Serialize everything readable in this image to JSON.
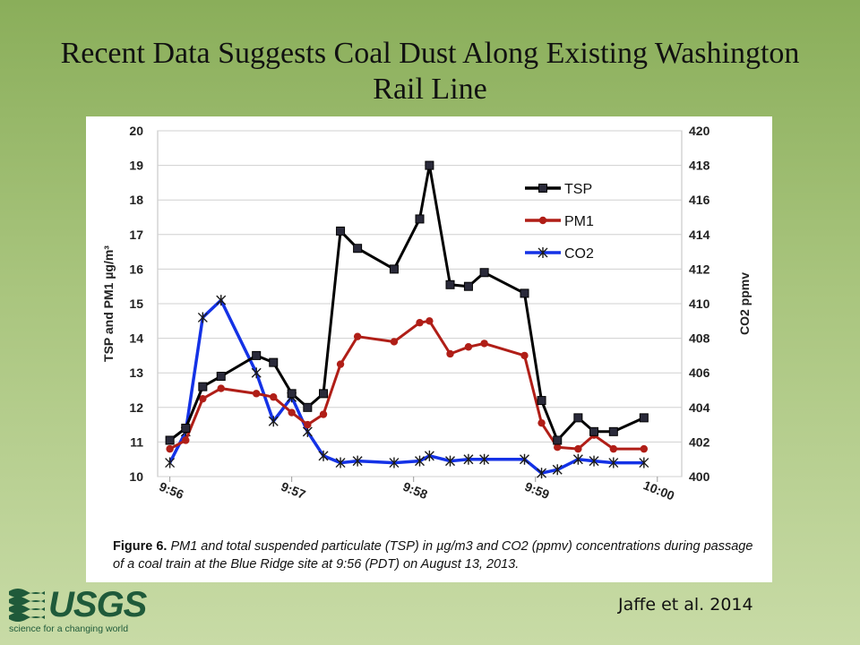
{
  "slide": {
    "title": "Recent Data Suggests Coal Dust Along Existing Washington Rail Line",
    "citation": "Jaffe et al. 2014",
    "logo_text": "USGS",
    "logo_tagline": "science for a changing world"
  },
  "caption": {
    "label": "Figure 6.",
    "text": "PM1 and total suspended particulate (TSP) in µg/m3 and CO2 (ppmv) concentrations during passage of a coal train at the Blue Ridge site at 9:56 (PDT) on August 13, 2013."
  },
  "colors": {
    "tsp": "#000000",
    "pm1": "#b01e17",
    "co2": "#1432e6"
  },
  "chart_data": {
    "type": "line",
    "ylabel": "TSP and PM1 µg/m³",
    "y2label": "CO2 ppmv",
    "ylim": [
      10,
      20
    ],
    "y2lim": [
      400,
      420
    ],
    "yticks": [
      10,
      11,
      12,
      13,
      14,
      15,
      16,
      17,
      18,
      19,
      20
    ],
    "y2ticks": [
      400,
      402,
      404,
      406,
      408,
      410,
      412,
      414,
      416,
      418,
      420
    ],
    "xlim": [
      -0.1,
      4.2
    ],
    "xticks": [
      {
        "value": 0,
        "label": "9:56"
      },
      {
        "value": 1,
        "label": "9:57"
      },
      {
        "value": 2,
        "label": "9:58"
      },
      {
        "value": 3,
        "label": "9:59"
      },
      {
        "value": 4,
        "label": "10:00"
      }
    ],
    "grid": true,
    "legend_position": "top-right",
    "series": [
      {
        "name": "TSP",
        "axis": "left",
        "marker": "square",
        "x": [
          0.0,
          0.13,
          0.27,
          0.42,
          0.71,
          0.85,
          1.0,
          1.13,
          1.26,
          1.4,
          1.54,
          1.84,
          2.05,
          2.13,
          2.3,
          2.45,
          2.58,
          2.91,
          3.05,
          3.18,
          3.35,
          3.48,
          3.64,
          3.89
        ],
        "y": [
          11.05,
          11.4,
          12.6,
          12.9,
          13.5,
          13.3,
          12.4,
          12.0,
          12.4,
          17.1,
          16.6,
          16.0,
          17.45,
          19.0,
          15.55,
          15.5,
          15.9,
          15.3,
          12.2,
          11.05,
          11.7,
          11.3,
          11.3,
          11.7
        ]
      },
      {
        "name": "PM1",
        "axis": "left",
        "marker": "circle",
        "x": [
          0.0,
          0.13,
          0.27,
          0.42,
          0.71,
          0.85,
          1.0,
          1.13,
          1.26,
          1.4,
          1.54,
          1.84,
          2.05,
          2.13,
          2.3,
          2.45,
          2.58,
          2.91,
          3.05,
          3.18,
          3.35,
          3.48,
          3.64,
          3.89
        ],
        "y": [
          10.8,
          11.05,
          12.25,
          12.55,
          12.4,
          12.3,
          11.85,
          11.5,
          11.8,
          13.25,
          14.05,
          13.9,
          14.45,
          14.5,
          13.55,
          13.75,
          13.85,
          13.5,
          11.55,
          10.85,
          10.8,
          11.2,
          10.8,
          10.8
        ]
      },
      {
        "name": "CO2",
        "axis": "right",
        "marker": "star",
        "x": [
          0.0,
          0.13,
          0.27,
          0.42,
          0.71,
          0.85,
          1.0,
          1.13,
          1.26,
          1.4,
          1.54,
          1.84,
          2.05,
          2.13,
          2.3,
          2.45,
          2.58,
          2.91,
          3.05,
          3.18,
          3.35,
          3.48,
          3.64,
          3.89
        ],
        "y": [
          400.8,
          402.6,
          409.2,
          410.2,
          406.0,
          403.2,
          404.6,
          402.6,
          401.2,
          400.8,
          400.9,
          400.8,
          400.9,
          401.2,
          400.9,
          401.0,
          401.0,
          401.0,
          400.2,
          400.4,
          401.0,
          400.9,
          400.8,
          400.8
        ]
      }
    ]
  }
}
